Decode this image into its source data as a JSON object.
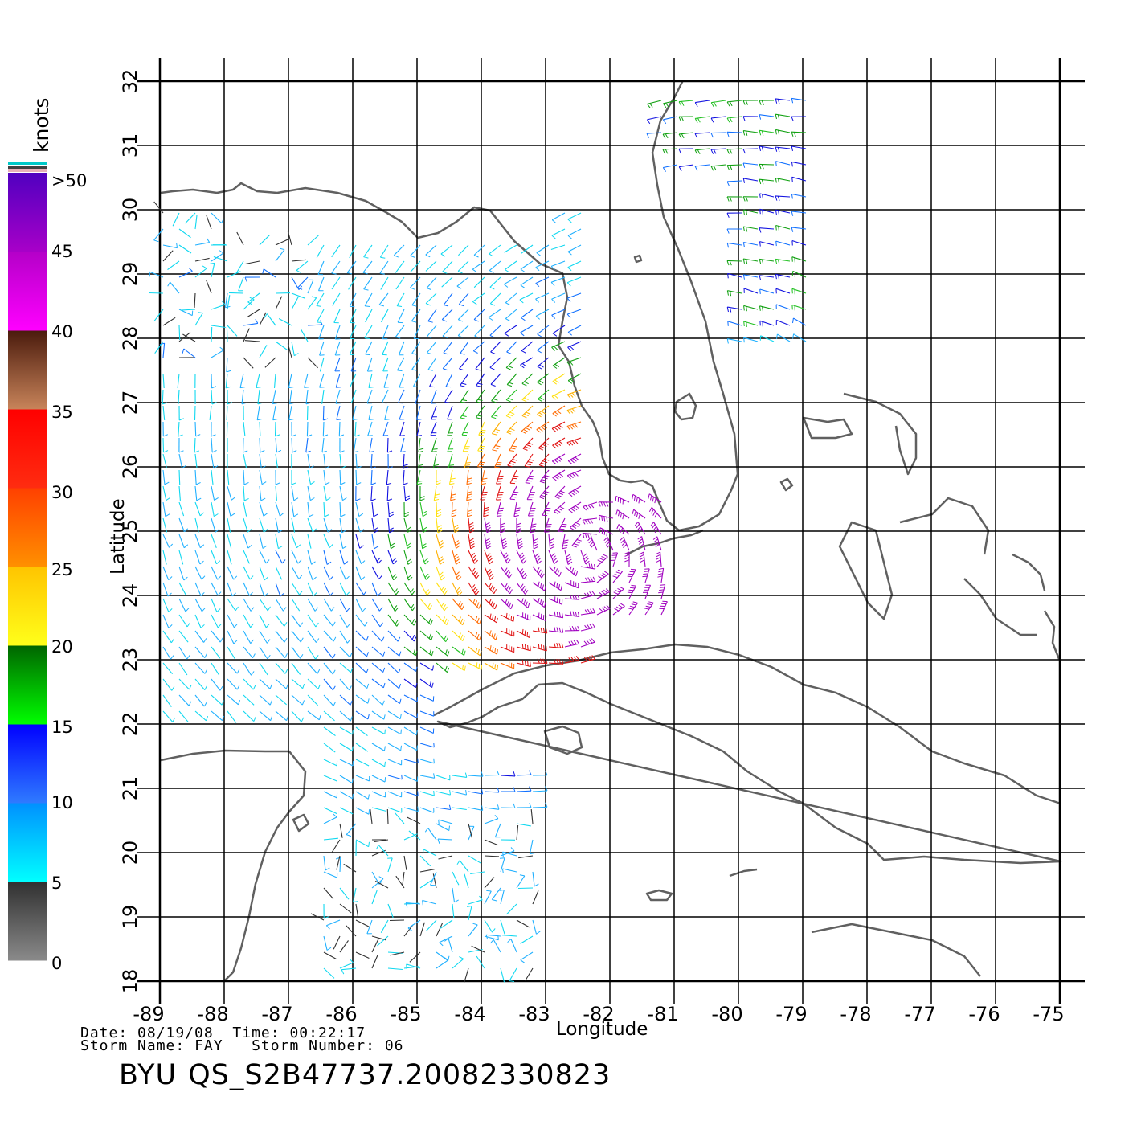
{
  "colorbar": {
    "unit": "knots",
    "labels": [
      ">50",
      "45",
      "40",
      "35",
      "30",
      "25",
      "20",
      "15",
      "10",
      "5",
      "0"
    ],
    "bands": [
      {
        "from": 0,
        "to": 5,
        "top": "#303030",
        "bottom": "#8a8a8a"
      },
      {
        "from": 5,
        "to": 10,
        "top": "#0090ff",
        "bottom": "#00ffff"
      },
      {
        "from": 10,
        "to": 15,
        "top": "#0000ff",
        "bottom": "#2f7bff"
      },
      {
        "from": 15,
        "to": 20,
        "top": "#006400",
        "bottom": "#00ff00"
      },
      {
        "from": 20,
        "to": 25,
        "top": "#ffc400",
        "bottom": "#ffff1a"
      },
      {
        "from": 25,
        "to": 30,
        "top": "#ff4000",
        "bottom": "#ff9000"
      },
      {
        "from": 30,
        "to": 35,
        "top": "#ff0000",
        "bottom": "#ff2c10"
      },
      {
        "from": 35,
        "to": 40,
        "top": "#4a1a0c",
        "bottom": "#c8845a"
      },
      {
        "from": 40,
        "to": 45,
        "top": "#b400c8",
        "bottom": "#ff00ff"
      },
      {
        "from": 45,
        "to": 50,
        "top": "#5000c0",
        "bottom": "#a800c8"
      }
    ]
  },
  "map": {
    "lon_range": [
      -89,
      -75
    ],
    "lat_range": [
      18,
      32
    ],
    "x_ticks": [
      "-89",
      "-88",
      "-87",
      "-86",
      "-85",
      "-84",
      "-83",
      "-82",
      "-81",
      "-80",
      "-79",
      "-78",
      "-77",
      "-76",
      "-75"
    ],
    "y_ticks": [
      "18",
      "19",
      "20",
      "21",
      "22",
      "23",
      "24",
      "25",
      "26",
      "27",
      "28",
      "29",
      "30",
      "31",
      "32"
    ],
    "xlabel": "Longitude",
    "ylabel": "Latitude",
    "grid": true,
    "coastline_color": "#606060",
    "storm_center": {
      "lon": -82.3,
      "lat": 24.7
    }
  },
  "footer": {
    "date_label": "Date:",
    "date": "08/19/08",
    "time_label": "Time:",
    "time": "00:22:17",
    "storm_name_label": "Storm Name:",
    "storm_name": "FAY",
    "storm_number_label": "Storm Number:",
    "storm_number": "06",
    "org": "BYU",
    "file_id": "QS_S2B47737.20082330823"
  }
}
